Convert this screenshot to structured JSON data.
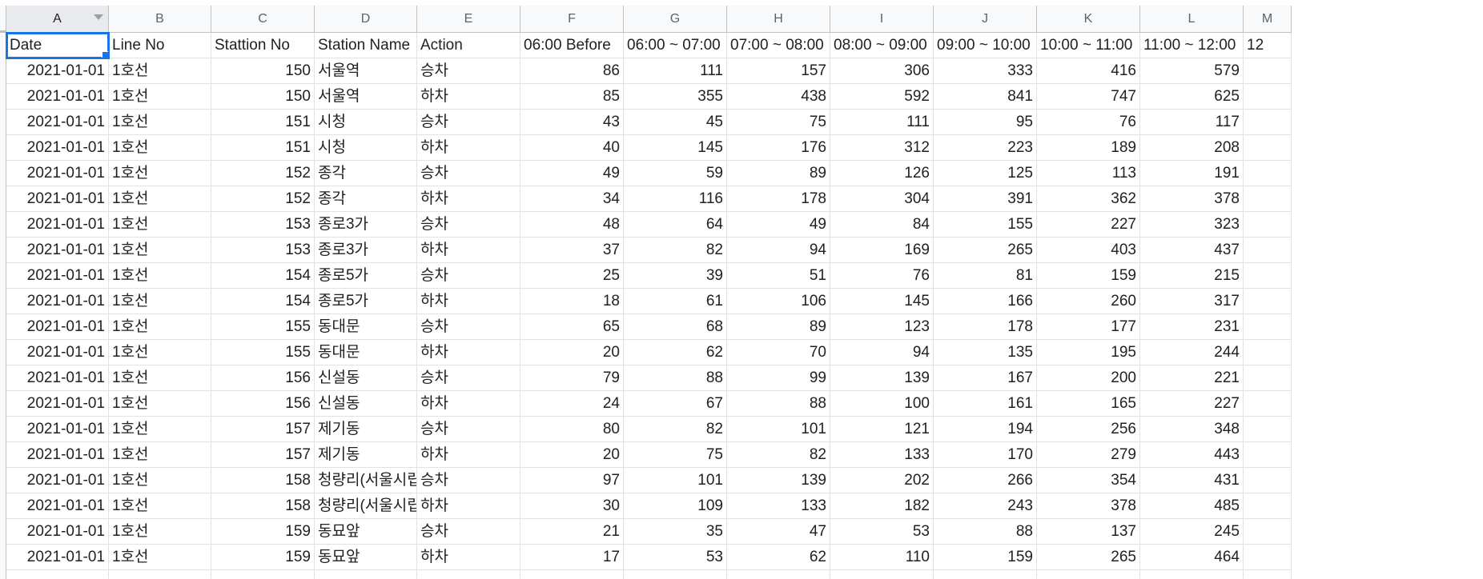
{
  "columns": [
    {
      "letter": "A",
      "header": "Date",
      "align": "num"
    },
    {
      "letter": "B",
      "header": "Line No",
      "align": "txt"
    },
    {
      "letter": "C",
      "header": "Stattion No",
      "align": "num"
    },
    {
      "letter": "D",
      "header": "Station Name",
      "align": "txt"
    },
    {
      "letter": "E",
      "header": "Action",
      "align": "txt"
    },
    {
      "letter": "F",
      "header": "06:00 Before",
      "align": "num"
    },
    {
      "letter": "G",
      "header": "06:00 ~ 07:00",
      "align": "num"
    },
    {
      "letter": "H",
      "header": "07:00 ~ 08:00",
      "align": "num"
    },
    {
      "letter": "I",
      "header": "08:00 ~ 09:00",
      "align": "num"
    },
    {
      "letter": "J",
      "header": "09:00 ~ 10:00",
      "align": "num"
    },
    {
      "letter": "K",
      "header": "10:00 ~ 11:00",
      "align": "num"
    },
    {
      "letter": "L",
      "header": "11:00 ~ 12:00",
      "align": "num"
    },
    {
      "letter": "M",
      "header": "12",
      "align": "num"
    }
  ],
  "rows": [
    [
      "2021-01-01",
      "1호선",
      "150",
      "서울역",
      "승차",
      "86",
      "111",
      "157",
      "306",
      "333",
      "416",
      "579"
    ],
    [
      "2021-01-01",
      "1호선",
      "150",
      "서울역",
      "하차",
      "85",
      "355",
      "438",
      "592",
      "841",
      "747",
      "625"
    ],
    [
      "2021-01-01",
      "1호선",
      "151",
      "시청",
      "승차",
      "43",
      "45",
      "75",
      "111",
      "95",
      "76",
      "117"
    ],
    [
      "2021-01-01",
      "1호선",
      "151",
      "시청",
      "하차",
      "40",
      "145",
      "176",
      "312",
      "223",
      "189",
      "208"
    ],
    [
      "2021-01-01",
      "1호선",
      "152",
      "종각",
      "승차",
      "49",
      "59",
      "89",
      "126",
      "125",
      "113",
      "191"
    ],
    [
      "2021-01-01",
      "1호선",
      "152",
      "종각",
      "하차",
      "34",
      "116",
      "178",
      "304",
      "391",
      "362",
      "378"
    ],
    [
      "2021-01-01",
      "1호선",
      "153",
      "종로3가",
      "승차",
      "48",
      "64",
      "49",
      "84",
      "155",
      "227",
      "323"
    ],
    [
      "2021-01-01",
      "1호선",
      "153",
      "종로3가",
      "하차",
      "37",
      "82",
      "94",
      "169",
      "265",
      "403",
      "437"
    ],
    [
      "2021-01-01",
      "1호선",
      "154",
      "종로5가",
      "승차",
      "25",
      "39",
      "51",
      "76",
      "81",
      "159",
      "215"
    ],
    [
      "2021-01-01",
      "1호선",
      "154",
      "종로5가",
      "하차",
      "18",
      "61",
      "106",
      "145",
      "166",
      "260",
      "317"
    ],
    [
      "2021-01-01",
      "1호선",
      "155",
      "동대문",
      "승차",
      "65",
      "68",
      "89",
      "123",
      "178",
      "177",
      "231"
    ],
    [
      "2021-01-01",
      "1호선",
      "155",
      "동대문",
      "하차",
      "20",
      "62",
      "70",
      "94",
      "135",
      "195",
      "244"
    ],
    [
      "2021-01-01",
      "1호선",
      "156",
      "신설동",
      "승차",
      "79",
      "88",
      "99",
      "139",
      "167",
      "200",
      "221"
    ],
    [
      "2021-01-01",
      "1호선",
      "156",
      "신설동",
      "하차",
      "24",
      "67",
      "88",
      "100",
      "161",
      "165",
      "227"
    ],
    [
      "2021-01-01",
      "1호선",
      "157",
      "제기동",
      "승차",
      "80",
      "82",
      "101",
      "121",
      "194",
      "256",
      "348"
    ],
    [
      "2021-01-01",
      "1호선",
      "157",
      "제기동",
      "하차",
      "20",
      "75",
      "82",
      "133",
      "170",
      "279",
      "443"
    ],
    [
      "2021-01-01",
      "1호선",
      "158",
      "청량리(서울시립",
      "승차",
      "97",
      "101",
      "139",
      "202",
      "266",
      "354",
      "431"
    ],
    [
      "2021-01-01",
      "1호선",
      "158",
      "청량리(서울시립",
      "하차",
      "30",
      "109",
      "133",
      "182",
      "243",
      "378",
      "485"
    ],
    [
      "2021-01-01",
      "1호선",
      "159",
      "동묘앞",
      "승차",
      "21",
      "35",
      "47",
      "53",
      "88",
      "137",
      "245"
    ],
    [
      "2021-01-01",
      "1호선",
      "159",
      "동묘앞",
      "하차",
      "17",
      "53",
      "62",
      "110",
      "159",
      "265",
      "464"
    ]
  ],
  "selected_cell": "A1",
  "accent_color": "#1a73e8"
}
